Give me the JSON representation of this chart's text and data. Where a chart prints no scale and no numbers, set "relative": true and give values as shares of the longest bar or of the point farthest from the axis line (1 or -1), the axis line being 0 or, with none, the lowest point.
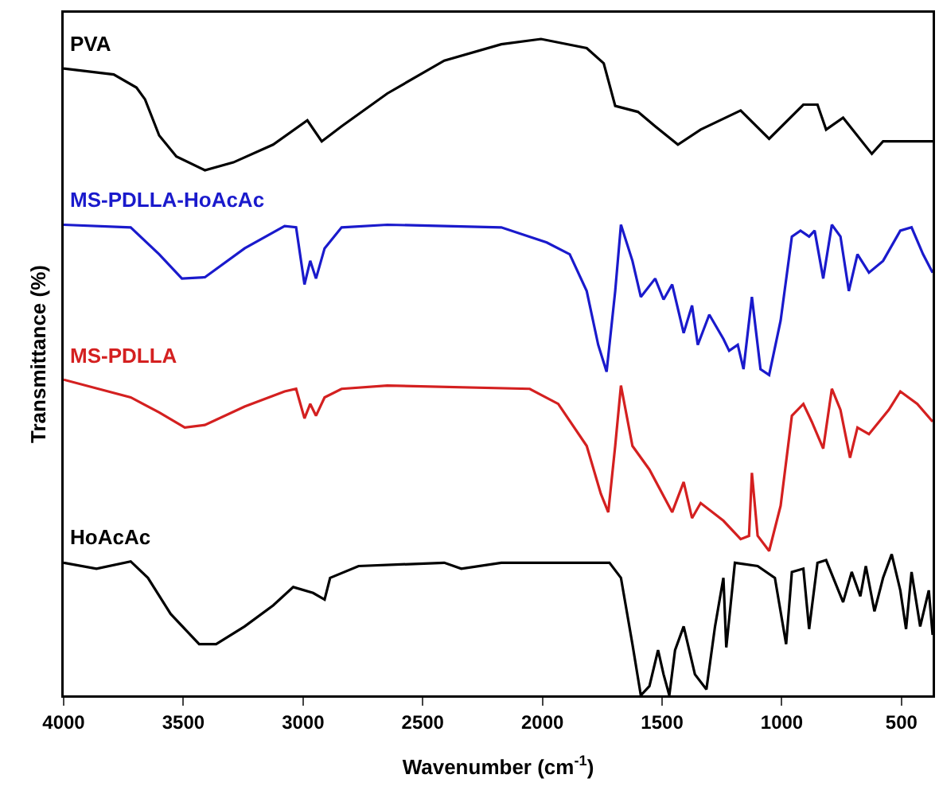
{
  "chart_data": {
    "type": "line",
    "relative": true,
    "xlabel": "Wavenumber (cm$^{-1}$)",
    "ylabel": "Transmittance (%)",
    "xlim": [
      4000,
      370
    ],
    "xticks": [
      4000,
      3500,
      3000,
      2500,
      2000,
      1500,
      1000,
      500
    ],
    "grid": false,
    "legend": false,
    "marker": "none",
    "line_style": "solid",
    "series": [
      {
        "name": "PVA",
        "color": "#000000",
        "x": [
          4000,
          3791,
          3696,
          3660,
          3601,
          3529,
          3410,
          3291,
          3125,
          2982,
          2922,
          2839,
          2648,
          2410,
          2172,
          2006,
          1815,
          1744,
          1696,
          1601,
          1529,
          1434,
          1339,
          1172,
          1053,
          910,
          851,
          815,
          744,
          624,
          577,
          370
        ],
        "values": [
          0.955,
          0.946,
          0.926,
          0.908,
          0.853,
          0.821,
          0.8,
          0.812,
          0.839,
          0.876,
          0.844,
          0.867,
          0.917,
          0.967,
          0.992,
          1.0,
          0.986,
          0.963,
          0.898,
          0.889,
          0.867,
          0.839,
          0.862,
          0.891,
          0.848,
          0.9,
          0.9,
          0.862,
          0.88,
          0.825,
          0.844,
          0.844
        ]
      },
      {
        "name": "MS-PDLLA-HoAcAc",
        "color": "#1a1acc",
        "x": [
          4000,
          3720,
          3601,
          3506,
          3410,
          3244,
          3077,
          3029,
          2994,
          2970,
          2946,
          2910,
          2839,
          2648,
          2172,
          1982,
          1886,
          1815,
          1767,
          1732,
          1696,
          1672,
          1624,
          1589,
          1529,
          1494,
          1458,
          1410,
          1375,
          1351,
          1303,
          1244,
          1220,
          1184,
          1160,
          1125,
          1089,
          1053,
          1005,
          958,
          922,
          886,
          863,
          827,
          791,
          755,
          720,
          684,
          636,
          577,
          505,
          458,
          410,
          370
        ],
        "values": [
          0.717,
          0.713,
          0.672,
          0.635,
          0.637,
          0.681,
          0.715,
          0.713,
          0.626,
          0.662,
          0.635,
          0.681,
          0.713,
          0.717,
          0.713,
          0.69,
          0.672,
          0.616,
          0.534,
          0.493,
          0.616,
          0.717,
          0.662,
          0.607,
          0.635,
          0.603,
          0.626,
          0.552,
          0.594,
          0.534,
          0.58,
          0.543,
          0.525,
          0.534,
          0.497,
          0.607,
          0.497,
          0.488,
          0.571,
          0.699,
          0.708,
          0.699,
          0.708,
          0.635,
          0.717,
          0.699,
          0.616,
          0.672,
          0.644,
          0.662,
          0.708,
          0.713,
          0.672,
          0.644
        ]
      },
      {
        "name": "MS-PDLLA",
        "color": "#d42020",
        "x": [
          4000,
          3720,
          3601,
          3494,
          3410,
          3244,
          3077,
          3029,
          2994,
          2970,
          2946,
          2910,
          2839,
          2648,
          2053,
          1934,
          1815,
          1756,
          1725,
          1696,
          1672,
          1624,
          1553,
          1458,
          1410,
          1375,
          1339,
          1244,
          1172,
          1137,
          1125,
          1101,
          1053,
          1005,
          958,
          910,
          875,
          827,
          791,
          755,
          715,
          684,
          636,
          553,
          505,
          434,
          370
        ],
        "values": [
          0.481,
          0.454,
          0.431,
          0.408,
          0.412,
          0.44,
          0.463,
          0.467,
          0.422,
          0.444,
          0.426,
          0.454,
          0.467,
          0.472,
          0.467,
          0.444,
          0.38,
          0.307,
          0.279,
          0.38,
          0.472,
          0.38,
          0.344,
          0.279,
          0.325,
          0.27,
          0.293,
          0.266,
          0.238,
          0.243,
          0.339,
          0.243,
          0.22,
          0.289,
          0.426,
          0.444,
          0.417,
          0.376,
          0.467,
          0.435,
          0.362,
          0.408,
          0.398,
          0.435,
          0.463,
          0.444,
          0.417
        ]
      },
      {
        "name": "HoAcAc",
        "color": "#000000",
        "x": [
          4000,
          3863,
          3720,
          3648,
          3553,
          3434,
          3363,
          3244,
          3125,
          3041,
          2958,
          2910,
          2887,
          2768,
          2410,
          2339,
          2172,
          1720,
          1672,
          1624,
          1589,
          1553,
          1517,
          1494,
          1470,
          1446,
          1410,
          1363,
          1315,
          1279,
          1244,
          1232,
          1196,
          1101,
          1029,
          982,
          958,
          910,
          886,
          851,
          815,
          744,
          708,
          672,
          649,
          613,
          577,
          541,
          505,
          481,
          458,
          422,
          386,
          370
        ],
        "values": [
          0.202,
          0.193,
          0.204,
          0.179,
          0.124,
          0.078,
          0.078,
          0.105,
          0.137,
          0.165,
          0.156,
          0.146,
          0.179,
          0.197,
          0.202,
          0.193,
          0.202,
          0.202,
          0.179,
          0.078,
          0.0,
          0.014,
          0.069,
          0.032,
          0.0,
          0.069,
          0.105,
          0.032,
          0.009,
          0.105,
          0.179,
          0.073,
          0.202,
          0.197,
          0.179,
          0.078,
          0.188,
          0.193,
          0.101,
          0.202,
          0.206,
          0.142,
          0.188,
          0.151,
          0.197,
          0.128,
          0.179,
          0.215,
          0.16,
          0.101,
          0.188,
          0.105,
          0.16,
          0.092
        ]
      }
    ]
  }
}
